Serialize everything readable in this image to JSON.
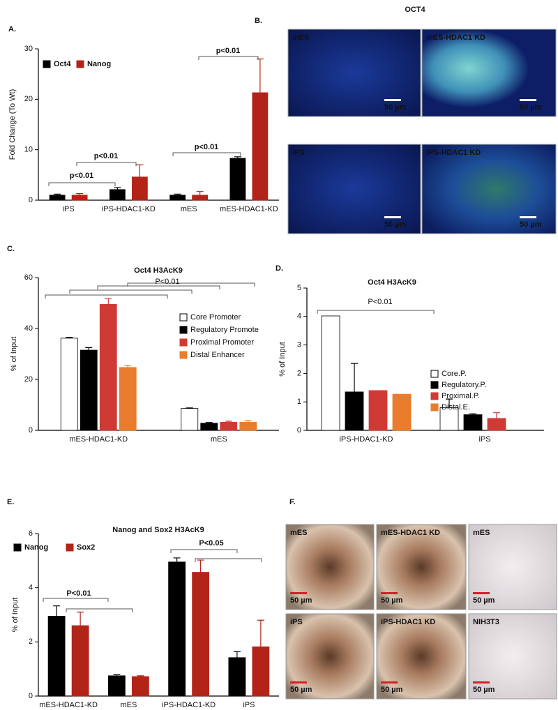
{
  "chart_data": [
    {
      "type": "bar",
      "panel": "A.",
      "y_label": "Fold Change (To Wt)",
      "categories": [
        "iPS",
        "iPS-HDAC1-KD",
        "mES",
        "mES-HDAC1-KD"
      ],
      "series": [
        {
          "name": "Oct4",
          "color": "#000000",
          "values": [
            1.0,
            2.1,
            1.0,
            8.3
          ],
          "errors": [
            0.2,
            0.4,
            0.2,
            0.3
          ]
        },
        {
          "name": "Nanog",
          "color": "#b22418",
          "values": [
            1.0,
            4.6,
            1.0,
            21.3
          ],
          "errors": [
            0.3,
            2.4,
            0.7,
            6.7
          ]
        }
      ],
      "ylim": [
        0,
        30
      ],
      "yticks": [
        0,
        10,
        20,
        30
      ],
      "annotations": [
        "p<0.01",
        "p<0.01",
        "p<0.01",
        "p<0.01"
      ]
    },
    {
      "type": "bar",
      "panel": "C.",
      "title": "Oct4 H3AcK9",
      "y_label": "% of Input",
      "categories": [
        "mES-HDAC1-KD",
        "mES"
      ],
      "series": [
        {
          "name": "Core Promoter",
          "color": "#ffffff",
          "values": [
            36.2,
            8.6
          ],
          "errors": [
            0.3,
            0.2
          ]
        },
        {
          "name": "Regulatory Promote",
          "color": "#000000",
          "values": [
            31.5,
            2.8
          ],
          "errors": [
            1.0,
            0.3
          ]
        },
        {
          "name": "Proximal Promoter",
          "color": "#d03a35",
          "values": [
            49.5,
            3.2
          ],
          "errors": [
            2.3,
            0.4
          ]
        },
        {
          "name": "Distal Enhancer",
          "color": "#ea7c2e",
          "values": [
            24.7,
            3.2
          ],
          "errors": [
            0.8,
            0.6
          ]
        }
      ],
      "ylim": [
        0,
        60
      ],
      "yticks": [
        0,
        20,
        40,
        60
      ],
      "annotations": [
        "P<0.01"
      ]
    },
    {
      "type": "bar",
      "panel": "D.",
      "title": "Oct4 H3AcK9",
      "y_label": "% of Input",
      "categories": [
        "iPS-HDAC1-KD",
        "iPS"
      ],
      "series": [
        {
          "name": "Core.P.",
          "color": "#ffffff",
          "values": [
            4.02,
            0.8
          ],
          "errors": [
            null,
            0.3
          ]
        },
        {
          "name": "Regulatory.P.",
          "color": "#000000",
          "values": [
            1.35,
            0.55
          ],
          "errors": [
            1.0,
            0.03
          ]
        },
        {
          "name": "Proximal.P.",
          "color": "#d03a35",
          "values": [
            1.4,
            0.42
          ],
          "errors": [
            null,
            0.2
          ]
        },
        {
          "name": "Distal.E.",
          "color": "#ea7c2e",
          "values": [
            1.27,
            null
          ],
          "errors": [
            null,
            null
          ]
        }
      ],
      "ylim": [
        0,
        5
      ],
      "yticks": [
        0,
        1,
        2,
        3,
        4,
        5
      ],
      "annotations": [
        "P<0.01"
      ]
    },
    {
      "type": "bar",
      "panel": "E.",
      "title": "Nanog and Sox2 H3AcK9",
      "y_label": "% of Input",
      "categories": [
        "mES-HDAC1-KD",
        "mES",
        "iPS-HDAC1-KD",
        "iPS"
      ],
      "series": [
        {
          "name": "Nanog",
          "color": "#000000",
          "values": [
            2.95,
            0.75,
            4.95,
            1.42
          ],
          "errors": [
            0.38,
            0.04,
            0.15,
            0.22
          ]
        },
        {
          "name": "Sox2",
          "color": "#b22418",
          "values": [
            2.6,
            0.72,
            4.57,
            1.82
          ],
          "errors": [
            0.5,
            0.03,
            0.45,
            0.98
          ]
        }
      ],
      "ylim": [
        0,
        6
      ],
      "yticks": [
        0,
        2,
        4,
        6
      ],
      "annotations": [
        "P<0.01",
        "P<0.05"
      ]
    }
  ],
  "images": [
    {
      "panel": "B.",
      "title": "OCT4",
      "tiles": [
        {
          "label": "mES",
          "scale": "50 µm"
        },
        {
          "label": "mES-HDAC1 KD",
          "scale": "50 µm"
        },
        {
          "label": "iPS",
          "scale": "50 µm"
        },
        {
          "label": "iPS-HDAC1 KD",
          "scale": "50 µm"
        }
      ]
    },
    {
      "panel": "F.",
      "tiles": [
        {
          "label": "mES",
          "scale": "50 µm"
        },
        {
          "label": "mES-HDAC1 KD",
          "scale": "50 µm"
        },
        {
          "label": "mES",
          "scale": "50 µm"
        },
        {
          "label": "iPS",
          "scale": "50 µm"
        },
        {
          "label": "iPS-HDAC1 KD",
          "scale": "50 µm"
        },
        {
          "label": "NIH3T3",
          "scale": "50 µm"
        }
      ]
    }
  ]
}
